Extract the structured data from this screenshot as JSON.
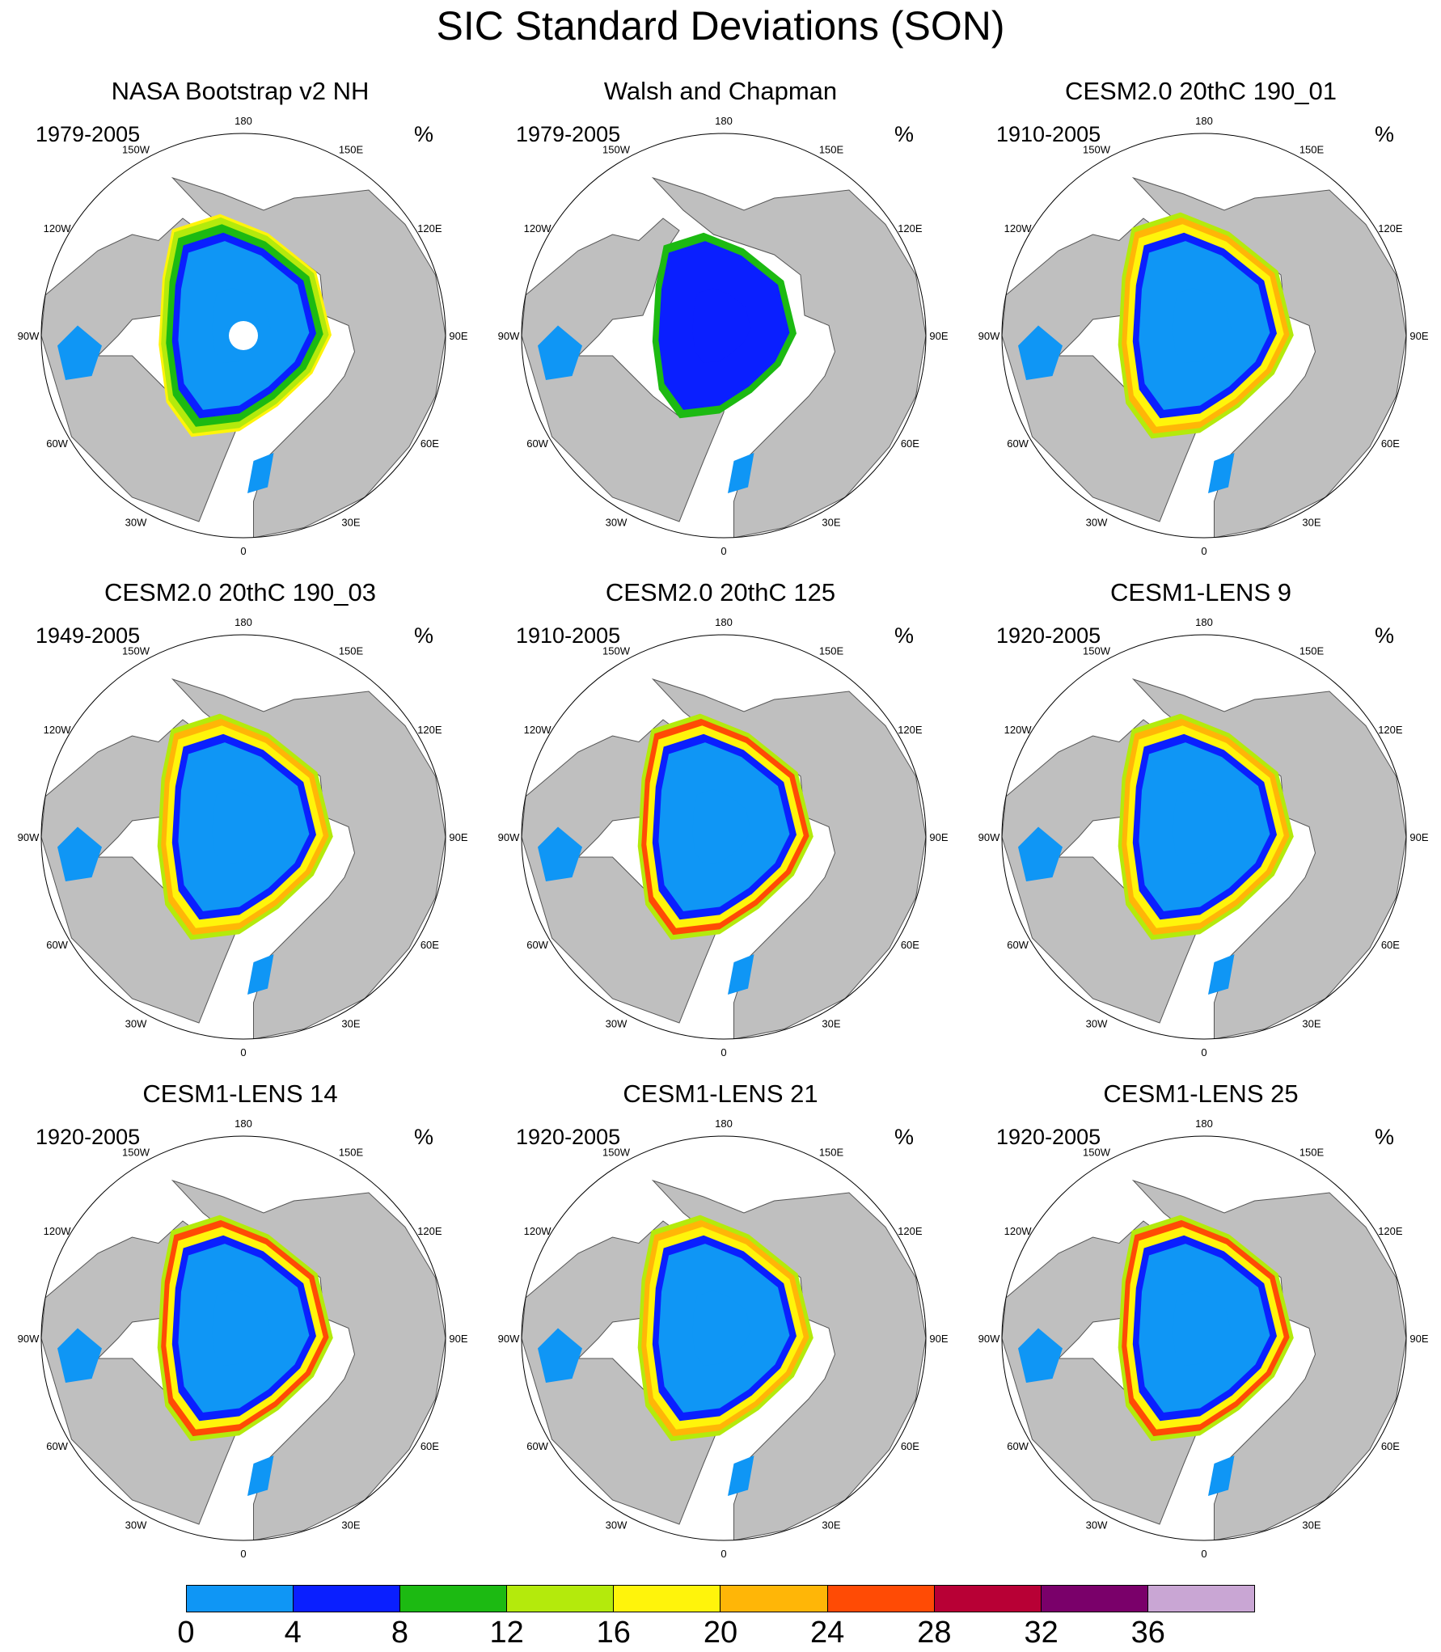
{
  "figure": {
    "title": "SIC Standard Deviations (SON)"
  },
  "colorbar": {
    "colors": [
      "#0f96f5",
      "#0a1fff",
      "#1cba12",
      "#b4ea0c",
      "#fff40b",
      "#ffb607",
      "#ff4b05",
      "#b80035",
      "#7a006a",
      "#c9a6d4"
    ],
    "labels": [
      "0",
      "4",
      "8",
      "12",
      "16",
      "20",
      "24",
      "28",
      "32",
      "36"
    ]
  },
  "map_style": {
    "land_color": "#bfbfbf",
    "ocean_color": "#ffffff",
    "coast_color": "#555555"
  },
  "lon_labels": [
    "180",
    "150E",
    "120E",
    "90E",
    "60E",
    "30E",
    "0",
    "30W",
    "60W",
    "90W",
    "120W",
    "150W"
  ],
  "panels": [
    {
      "title": "NASA Bootstrap v2 NH",
      "period": "1979-2005",
      "units": "%",
      "pole_hole": true
    },
    {
      "title": "Walsh and Chapman",
      "period": "1979-2005",
      "units": "%"
    },
    {
      "title": "CESM2.0 20thC 190_01",
      "period": "1910-2005",
      "units": "%"
    },
    {
      "title": "CESM2.0 20thC 190_03",
      "period": "1949-2005",
      "units": "%"
    },
    {
      "title": "CESM2.0 20thC 125",
      "period": "1910-2005",
      "units": "%"
    },
    {
      "title": "CESM1-LENS 9",
      "period": "1920-2005",
      "units": "%"
    },
    {
      "title": "CESM1-LENS 14",
      "period": "1920-2005",
      "units": "%"
    },
    {
      "title": "CESM1-LENS 21",
      "period": "1920-2005",
      "units": "%"
    },
    {
      "title": "CESM1-LENS 25",
      "period": "1920-2005",
      "units": "%"
    }
  ]
}
